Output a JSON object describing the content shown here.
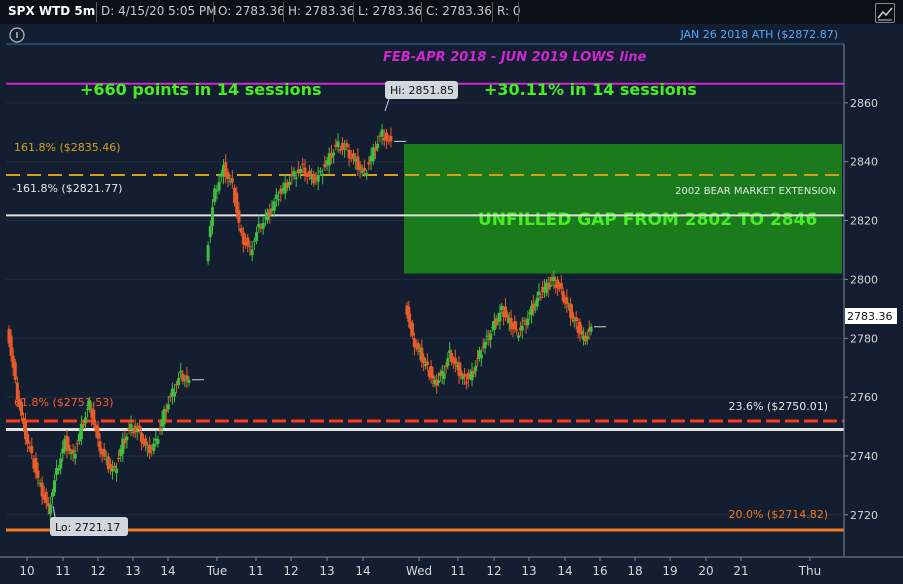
{
  "header": {
    "symbol": "SPX WTD 5m",
    "date": "D: 4/15/20 5:05 PM",
    "open": "O: 2783.36",
    "high": "H: 2783.36",
    "low": "L: 2783.36",
    "close": "C: 2783.36",
    "range": "R: 0",
    "info_icon": "info-icon",
    "trend_icon": "trend-icon"
  },
  "annotations": {
    "ath": "JAN 26 2018 ATH  ($2872.87)",
    "lows_line": "FEB-APR 2018 - JUN 2019  LOWS line",
    "points": "+660 points in 14 sessions",
    "percent": "+30.11% in 14 sessions",
    "hi_bubble": "Hi: 2851.85",
    "lo_bubble": "Lo: 2721.17",
    "fib_1618": "161.8%  ($2835.46)",
    "fib_neg1618": "-161.8%  ($2821.77)",
    "bear_ext": "2002 BEAR MARKET EXTENSION",
    "gap": "UNFILLED GAP FROM 2802 TO 2846",
    "fib_left": "61.8%  ($2751.53)",
    "fib_236": "23.6%  ($2750.01)",
    "fib_20": "20.0%  ($2714.82)",
    "last_price": "2783.36"
  },
  "colors": {
    "background": "#131f31",
    "up": "#3fbf3f",
    "down": "#e85c2a",
    "gap_fill": "#1b7a1b",
    "magenta": "#d126d1",
    "orange_line": "#f07a1e",
    "gold_dash": "#d4a017",
    "white_line": "#e0e0e0",
    "green_text": "#44ee22",
    "ath_text": "#4fa8ff",
    "red_dash": "#ff3a1a"
  },
  "chart_data": {
    "type": "candlestick",
    "y_range": [
      2706,
      2880
    ],
    "y_ticks": [
      2720,
      2740,
      2760,
      2780,
      2800,
      2820,
      2840,
      2860
    ],
    "x_ticks": [
      "10",
      "11",
      "12",
      "13",
      "14",
      "Tue",
      "11",
      "12",
      "13",
      "14",
      "Wed",
      "11",
      "12",
      "13",
      "14",
      "16",
      "18",
      "19",
      "20",
      "21",
      "Thu"
    ],
    "levels": [
      {
        "name": "ath",
        "value": 2872.87
      },
      {
        "name": "lows_line",
        "value": 2866.5
      },
      {
        "name": "fib_1618",
        "value": 2835.46
      },
      {
        "name": "fib_neg1618",
        "value": 2821.77
      },
      {
        "name": "fib_618_left",
        "value": 2751.53
      },
      {
        "name": "fib_236",
        "value": 2750.01
      },
      {
        "name": "fib_20",
        "value": 2714.82
      }
    ],
    "gap": {
      "low": 2802,
      "high": 2846
    },
    "sessions": [
      {
        "name": "Mon",
        "points": [
          2785,
          2765,
          2750,
          2740,
          2730,
          2722,
          2735,
          2745,
          2740,
          2750,
          2758,
          2745,
          2738,
          2735,
          2745,
          2750,
          2748,
          2742,
          2745,
          2755,
          2762,
          2768,
          2765
        ]
      },
      {
        "name": "Tue",
        "points": [
          2808,
          2830,
          2838,
          2832,
          2815,
          2810,
          2818,
          2822,
          2828,
          2832,
          2836,
          2838,
          2834,
          2836,
          2842,
          2846,
          2844,
          2840,
          2836,
          2844,
          2850,
          2846
        ]
      },
      {
        "name": "Wed",
        "points": [
          2793,
          2780,
          2775,
          2770,
          2765,
          2768,
          2775,
          2770,
          2766,
          2768,
          2775,
          2780,
          2785,
          2790,
          2786,
          2782,
          2785,
          2790,
          2795,
          2798,
          2800,
          2796,
          2790,
          2785,
          2780,
          2783
        ]
      }
    ]
  }
}
